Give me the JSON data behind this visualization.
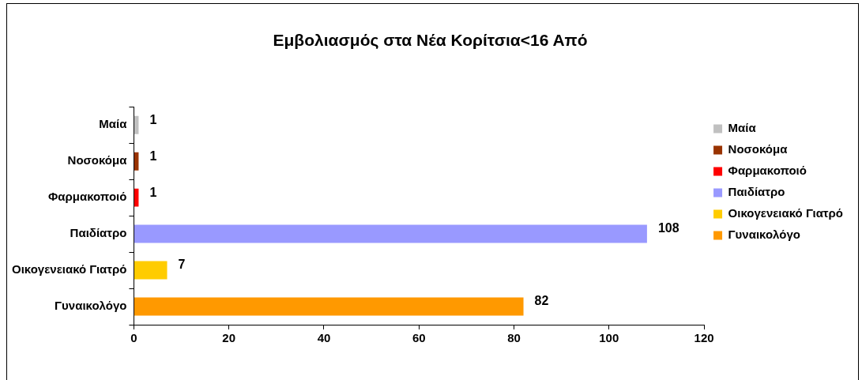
{
  "chart_data": {
    "type": "bar",
    "orientation": "horizontal",
    "stacked": true,
    "title": "Εμβολιασμός στα Νέα Κορίτσια<16 Από",
    "categories": [
      "Μαία",
      "Νοσοκόμα",
      "Φαρμακοποιό",
      "Παιδίατρο",
      "Οικογενειακό Γιατρό",
      "Γυναικολόγο"
    ],
    "series": [
      {
        "name": "Μαία",
        "color": "#c0c0c0",
        "values": [
          1,
          null,
          null,
          null,
          null,
          null
        ]
      },
      {
        "name": "Νοσοκόμα",
        "color": "#993300",
        "values": [
          null,
          1,
          null,
          null,
          null,
          null
        ]
      },
      {
        "name": "Φαρμακοποιό",
        "color": "#ff0000",
        "values": [
          null,
          null,
          1,
          null,
          null,
          null
        ]
      },
      {
        "name": "Παιδίατρο",
        "color": "#9999ff",
        "values": [
          null,
          null,
          null,
          108,
          null,
          null
        ]
      },
      {
        "name": "Οικογενειακό Γιατρό",
        "color": "#ffcc00",
        "values": [
          null,
          null,
          null,
          null,
          7,
          null
        ]
      },
      {
        "name": "Γυναικολόγο",
        "color": "#ff9900",
        "values": [
          null,
          null,
          null,
          null,
          null,
          82
        ]
      }
    ],
    "xlim": [
      0,
      120
    ],
    "xticks": [
      0,
      20,
      40,
      60,
      80,
      100,
      120
    ],
    "grid": false,
    "legend": "right",
    "data_labels": true
  }
}
